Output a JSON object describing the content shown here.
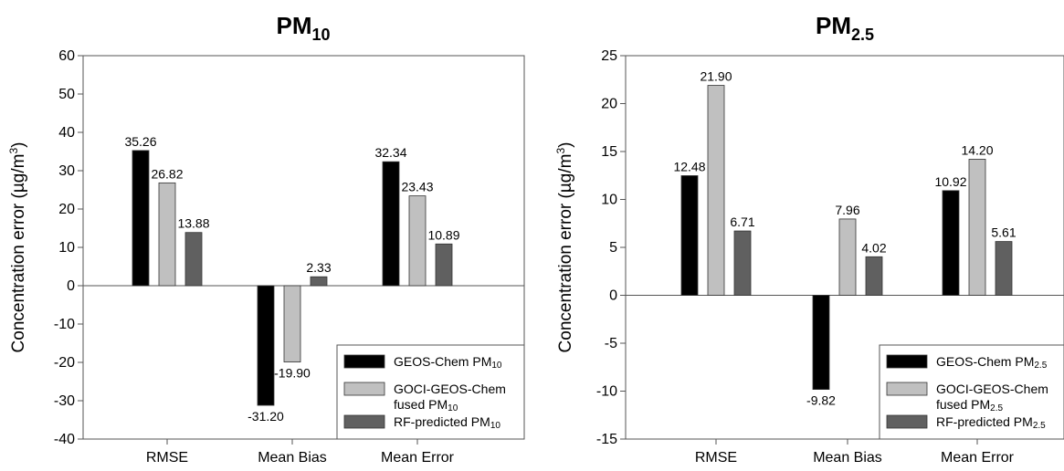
{
  "chart_data": [
    {
      "type": "bar",
      "title": "PM",
      "title_sub": "10",
      "ylabel_main": "Concentration error (µg/m",
      "ylabel_sup": "3",
      "ylabel_end": ")",
      "ylim": [
        -40,
        60
      ],
      "yticks": [
        -40,
        -30,
        -20,
        -10,
        0,
        10,
        20,
        30,
        40,
        50,
        60
      ],
      "categories": [
        "RMSE",
        "Mean Bias",
        "Mean Error"
      ],
      "series": [
        {
          "name": "GEOS-Chem PM",
          "name_sub": "10",
          "color": "#000000",
          "values": [
            35.26,
            -31.2,
            32.34
          ],
          "labels": [
            "35.26",
            "-31.20",
            "32.34"
          ]
        },
        {
          "name": "GOCI-GEOS-Chem",
          "name2": "fused PM",
          "name_sub": "10",
          "color": "#c0c0c0",
          "values": [
            26.82,
            -19.9,
            23.43
          ],
          "labels": [
            "26.82",
            "-19.90",
            "23.43"
          ]
        },
        {
          "name": "RF-predicted PM",
          "name_sub": "10",
          "color": "#606060",
          "values": [
            13.88,
            2.33,
            10.89
          ],
          "labels": [
            "13.88",
            "2.33",
            "10.89"
          ]
        }
      ],
      "legend": "bottom-right",
      "grid": false
    },
    {
      "type": "bar",
      "title": "PM",
      "title_sub": "2.5",
      "ylabel_main": "Concentration error (µg/m",
      "ylabel_sup": "3",
      "ylabel_end": ")",
      "ylim": [
        -15,
        25
      ],
      "yticks": [
        -15,
        -10,
        -5,
        0,
        5,
        10,
        15,
        20,
        25
      ],
      "categories": [
        "RMSE",
        "Mean Bias",
        "Mean Error"
      ],
      "series": [
        {
          "name": "GEOS-Chem PM",
          "name_sub": "2.5",
          "color": "#000000",
          "values": [
            12.48,
            -9.82,
            10.92
          ],
          "labels": [
            "12.48",
            "-9.82",
            "10.92"
          ]
        },
        {
          "name": "GOCI-GEOS-Chem",
          "name2": "fused PM",
          "name_sub": "2.5",
          "color": "#c0c0c0",
          "values": [
            21.9,
            7.96,
            14.2
          ],
          "labels": [
            "21.90",
            "7.96",
            "14.20"
          ]
        },
        {
          "name": "RF-predicted PM",
          "name_sub": "2.5",
          "color": "#606060",
          "values": [
            6.71,
            4.02,
            5.61
          ],
          "labels": [
            "6.71",
            "4.02",
            "5.61"
          ]
        }
      ],
      "legend": "bottom-right",
      "grid": false
    }
  ]
}
